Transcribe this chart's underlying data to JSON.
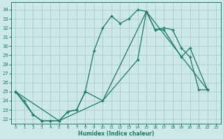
{
  "xlabel": "Humidex (Indice chaleur)",
  "bg_color": "#cce8e8",
  "grid_color": "#b0cccc",
  "line_color": "#1a7a6a",
  "xlim": [
    -0.5,
    23.5
  ],
  "ylim": [
    21.5,
    34.8
  ],
  "xticks": [
    0,
    1,
    2,
    3,
    4,
    5,
    6,
    7,
    8,
    9,
    10,
    11,
    12,
    13,
    14,
    15,
    16,
    17,
    18,
    19,
    20,
    21,
    22,
    23
  ],
  "yticks": [
    22,
    23,
    24,
    25,
    26,
    27,
    28,
    29,
    30,
    31,
    32,
    33,
    34
  ],
  "series1_x": [
    0,
    1,
    2,
    3,
    4,
    5,
    6,
    7,
    8,
    9,
    10,
    11,
    12,
    13,
    14,
    15,
    16,
    17,
    18,
    19,
    20,
    21,
    22
  ],
  "series1_y": [
    25.0,
    24.0,
    22.5,
    21.8,
    21.8,
    21.8,
    22.8,
    23.0,
    25.0,
    29.5,
    32.0,
    33.3,
    32.5,
    33.0,
    34.0,
    33.8,
    31.8,
    32.0,
    31.8,
    29.8,
    28.8,
    25.2,
    25.2
  ],
  "series2_x": [
    0,
    2,
    3,
    4,
    5,
    6,
    7,
    8,
    10,
    14,
    15,
    16,
    17,
    19,
    20,
    22
  ],
  "series2_y": [
    25.0,
    22.5,
    21.8,
    21.8,
    21.8,
    22.8,
    23.0,
    25.0,
    24.0,
    28.5,
    33.8,
    31.8,
    31.8,
    28.8,
    29.8,
    25.2
  ],
  "series3_x": [
    0,
    5,
    10,
    15,
    22
  ],
  "series3_y": [
    25.0,
    21.8,
    24.0,
    33.8,
    25.2
  ]
}
